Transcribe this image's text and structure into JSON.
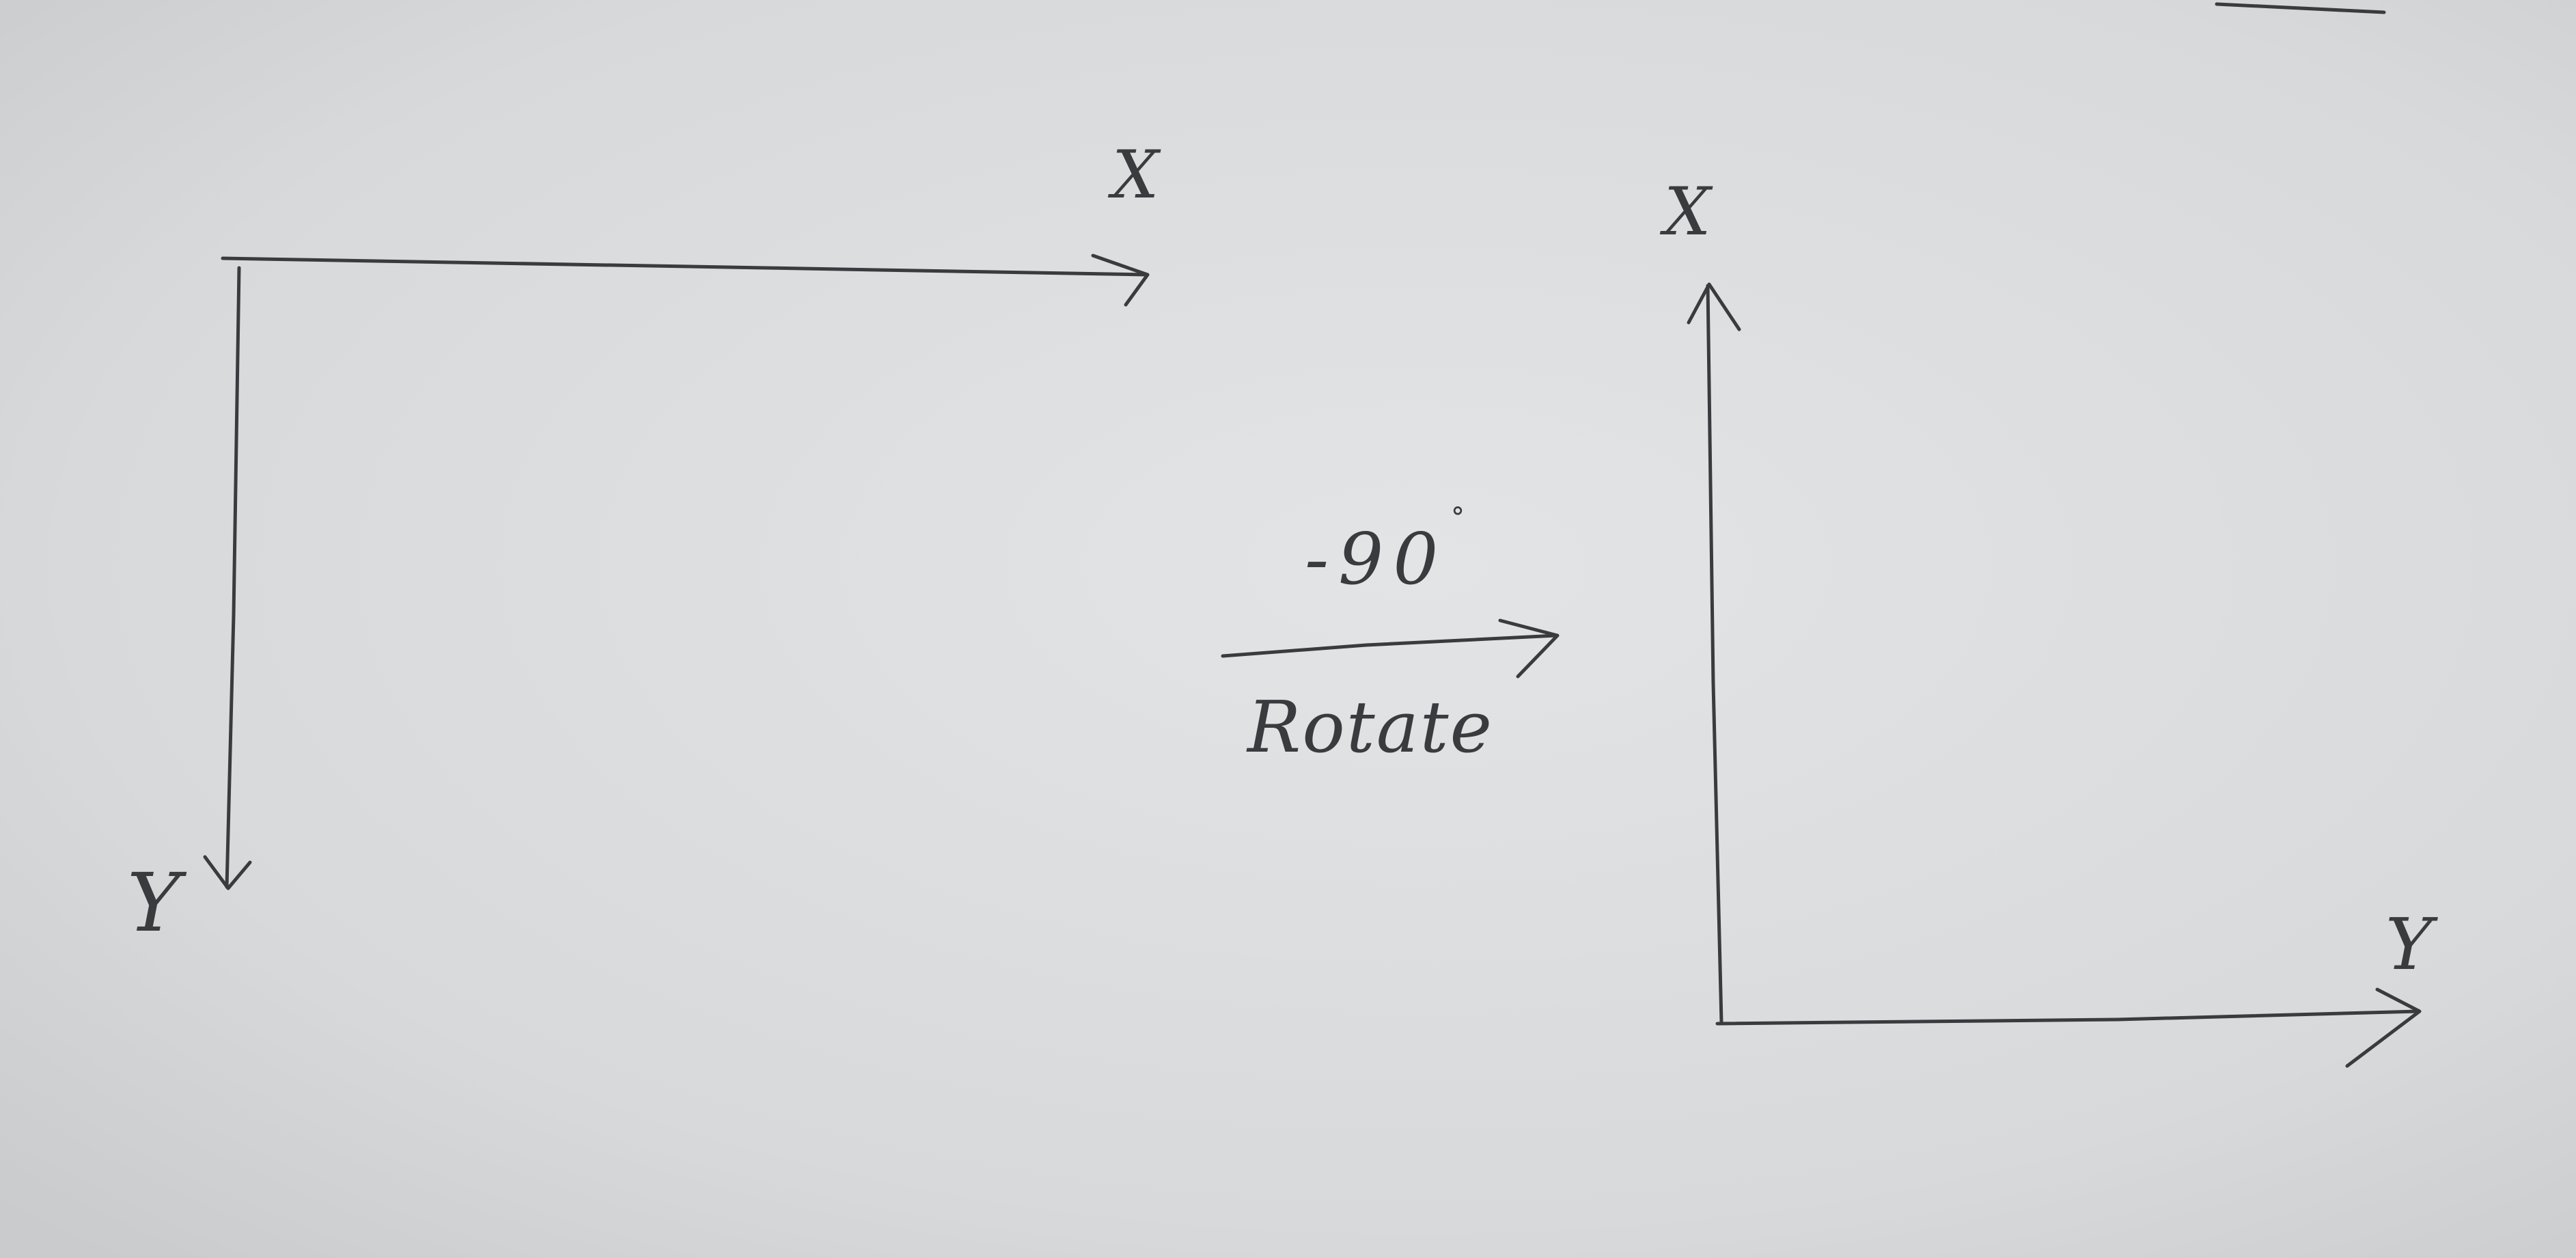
{
  "diagram": {
    "left_axes": {
      "x_label": "X",
      "y_label": "Y"
    },
    "transform": {
      "angle_text": "-90",
      "degree_symbol": "°",
      "operation_text": "Rotate"
    },
    "right_axes": {
      "x_label": "X",
      "y_label": "Y"
    }
  },
  "colors": {
    "paper": "#d8dadc",
    "ink": "#3a3b3e"
  }
}
